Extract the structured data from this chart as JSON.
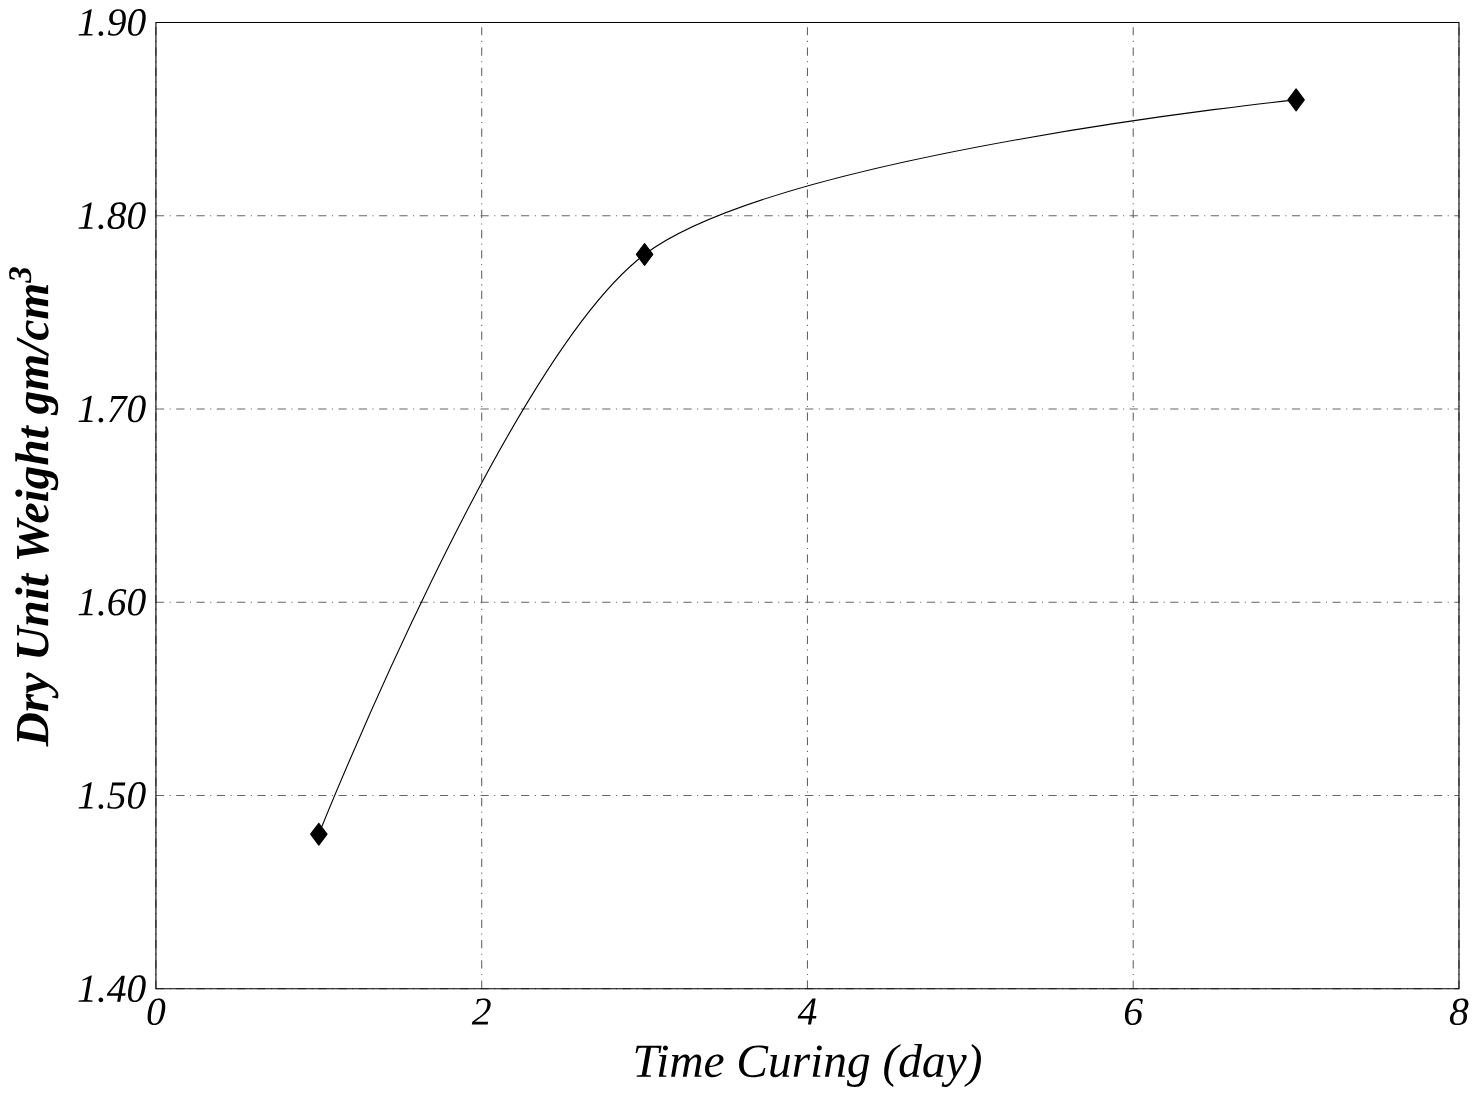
{
  "chart_data": {
    "type": "line",
    "xlabel": "Time Curing (day)",
    "ylabel": "Dry Unit Weight  gm/cm$^{3}$",
    "x": [
      1,
      3,
      7
    ],
    "series": [
      {
        "color": "#000000",
        "values": [
          1.48,
          1.78,
          1.86
        ]
      }
    ],
    "xlim": [
      0,
      8
    ],
    "ylim": [
      1.4,
      1.9
    ],
    "xticks": [
      0,
      2,
      4,
      6,
      8
    ],
    "yticks": [
      {
        "value": 1.4,
        "label": "1.40"
      },
      {
        "value": 1.5,
        "label": "1.50"
      },
      {
        "value": 1.6,
        "label": "1.60"
      },
      {
        "value": 1.7,
        "label": "1.70"
      },
      {
        "value": 1.8,
        "label": "1.80"
      },
      {
        "value": 1.9,
        "label": "1.90"
      }
    ],
    "grid": true,
    "marker": "diamond",
    "line_style": "solid"
  }
}
